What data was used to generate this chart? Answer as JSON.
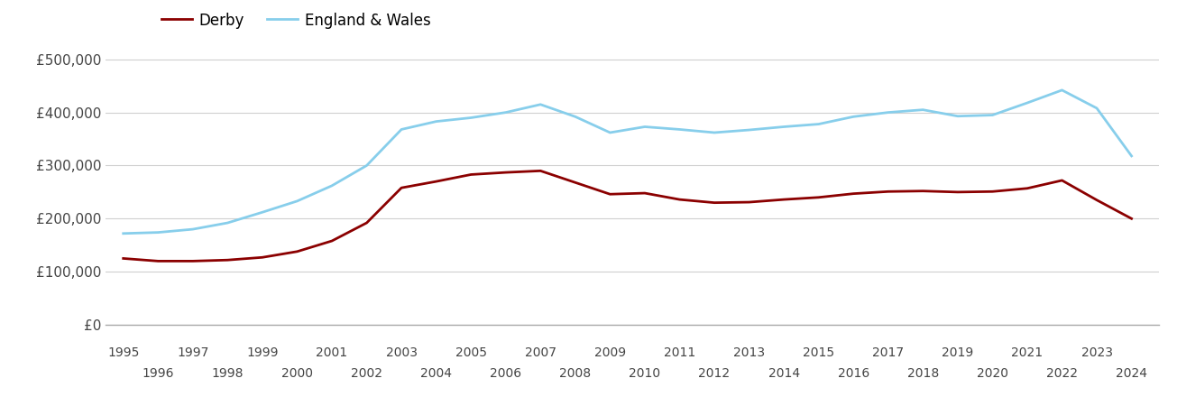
{
  "years": [
    1995,
    1996,
    1997,
    1998,
    1999,
    2000,
    2001,
    2002,
    2003,
    2004,
    2005,
    2006,
    2007,
    2008,
    2009,
    2010,
    2011,
    2012,
    2013,
    2014,
    2015,
    2016,
    2017,
    2018,
    2019,
    2020,
    2021,
    2022,
    2023,
    2024
  ],
  "derby": [
    125000,
    120000,
    120000,
    122000,
    127000,
    138000,
    158000,
    192000,
    258000,
    270000,
    283000,
    287000,
    290000,
    268000,
    246000,
    248000,
    236000,
    230000,
    231000,
    236000,
    240000,
    247000,
    251000,
    252000,
    250000,
    251000,
    257000,
    272000,
    235000,
    200000
  ],
  "england_wales": [
    172000,
    174000,
    180000,
    192000,
    212000,
    233000,
    262000,
    300000,
    368000,
    383000,
    390000,
    400000,
    415000,
    392000,
    362000,
    373000,
    368000,
    362000,
    367000,
    373000,
    378000,
    392000,
    400000,
    405000,
    393000,
    395000,
    418000,
    442000,
    408000,
    318000
  ],
  "derby_color": "#8b0000",
  "ew_color": "#87ceeb",
  "background_color": "#ffffff",
  "grid_color": "#d0d0d0",
  "ylim": [
    0,
    520000
  ],
  "yticks": [
    0,
    100000,
    200000,
    300000,
    400000,
    500000
  ],
  "ytick_labels": [
    "£0",
    "£100,000",
    "£200,000",
    "£300,000",
    "£400,000",
    "£500,000"
  ],
  "legend_derby": "Derby",
  "legend_ew": "England & Wales",
  "xlim_left": 1994.5,
  "xlim_right": 2024.8
}
